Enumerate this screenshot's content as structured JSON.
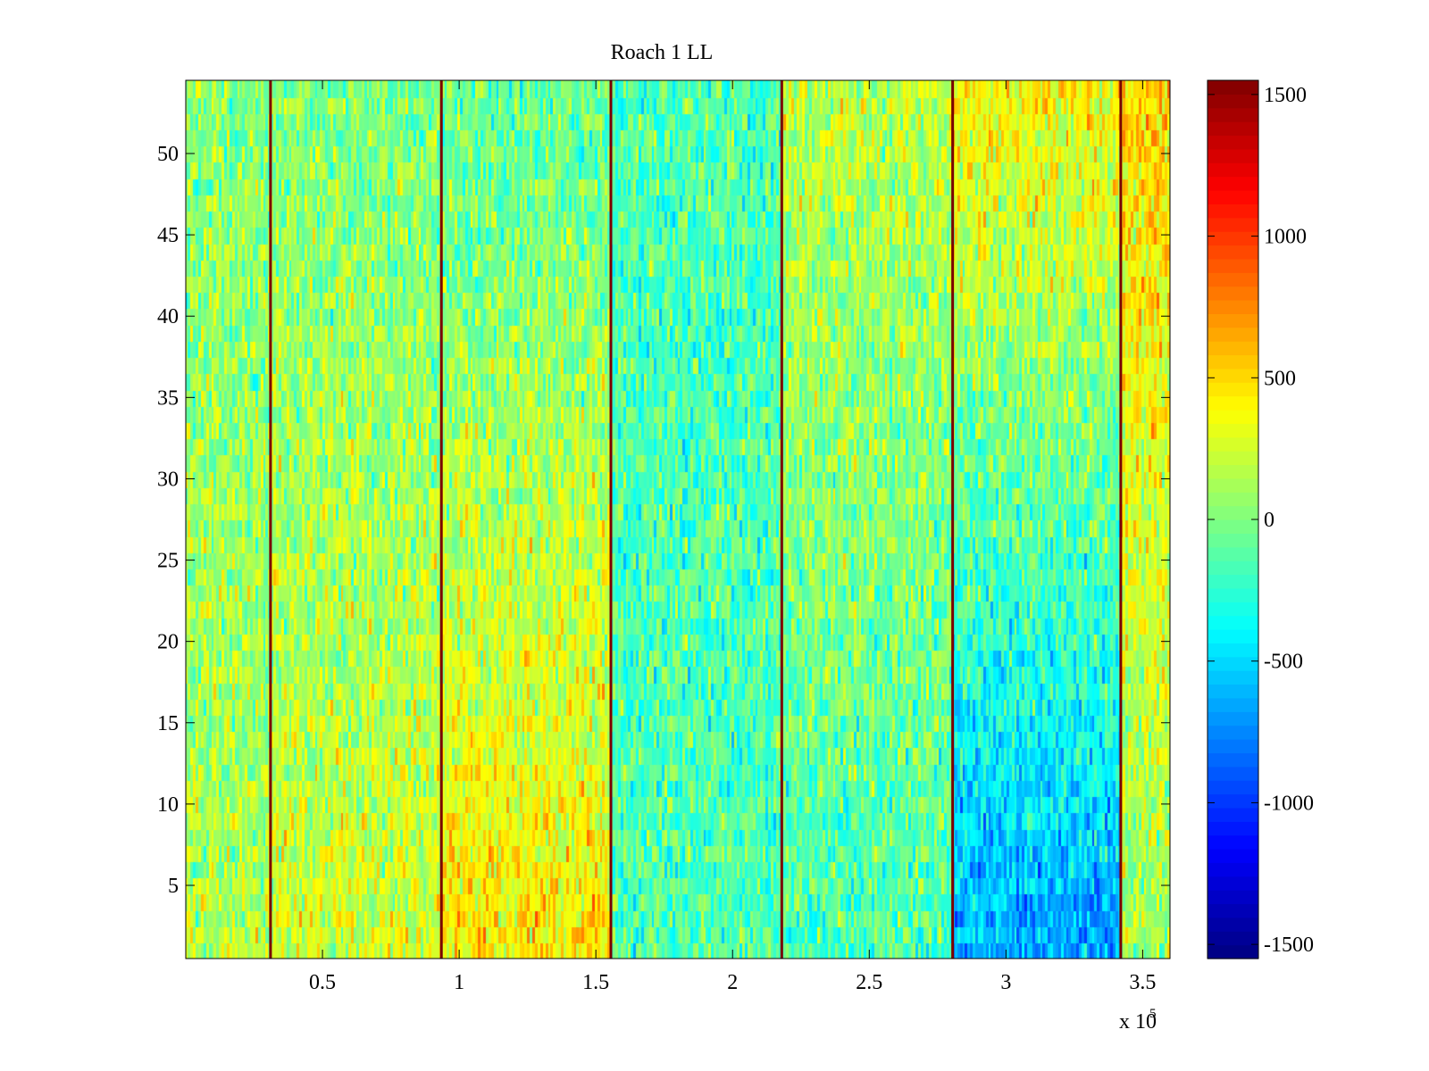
{
  "chart_data": {
    "type": "heatmap",
    "title": "Roach 1 LL",
    "xlabel": "",
    "ylabel": "",
    "xlim": [
      0,
      360000
    ],
    "ylim": [
      0.5,
      54.5
    ],
    "x_ticks": [
      50000,
      100000,
      150000,
      200000,
      250000,
      300000,
      350000
    ],
    "x_tick_labels": [
      "0.5",
      "1",
      "1.5",
      "2",
      "2.5",
      "3",
      "3.5"
    ],
    "x_exponent_label": "x 10",
    "x_exponent_power": "5",
    "y_ticks": [
      5,
      10,
      15,
      20,
      25,
      30,
      35,
      40,
      45,
      50
    ],
    "y_tick_labels": [
      "5",
      "10",
      "15",
      "20",
      "25",
      "30",
      "35",
      "40",
      "45",
      "50"
    ],
    "rows": 54,
    "colormap": "jet",
    "clim": [
      -1550,
      1550
    ],
    "colorbar": {
      "ticks": [
        -1500,
        -1000,
        -500,
        0,
        500,
        1000,
        1500
      ],
      "tick_labels": [
        "-1500",
        "-1000",
        "-500",
        "0",
        "500",
        "1000",
        "1500"
      ]
    },
    "boundary_lines_x": [
      31000,
      93500,
      155500,
      218000,
      280500,
      342000
    ],
    "boundary_line_color": "#7a0000",
    "grid": false,
    "regions": [
      {
        "x_start": 0,
        "x_end": 31000,
        "mean_low_rows": 150,
        "mean_high_rows": 20
      },
      {
        "x_start": 31000,
        "x_end": 93500,
        "mean_low_rows": 250,
        "mean_high_rows": 0
      },
      {
        "x_start": 93500,
        "x_end": 155500,
        "mean_low_rows": 450,
        "mean_high_rows": -100
      },
      {
        "x_start": 155500,
        "x_end": 218000,
        "mean_low_rows": -150,
        "mean_high_rows": -150
      },
      {
        "x_start": 218000,
        "x_end": 280500,
        "mean_low_rows": -150,
        "mean_high_rows": 180
      },
      {
        "x_start": 280500,
        "x_end": 342000,
        "mean_low_rows": -650,
        "mean_high_rows": 400
      },
      {
        "x_start": 342000,
        "x_end": 360000,
        "mean_low_rows": 100,
        "mean_high_rows": 500
      }
    ]
  }
}
